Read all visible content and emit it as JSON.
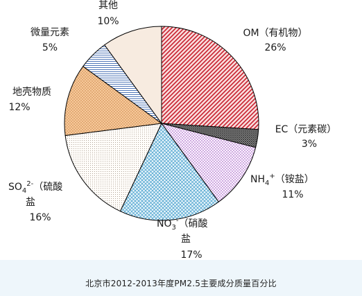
{
  "chart_data": {
    "type": "pie",
    "title": "北京市2012-2013年度PM2.5主要成分质量百分比",
    "slices": [
      {
        "label": "OM（有机物）",
        "value": 26,
        "value_label": "26%",
        "color": "#c8202e",
        "pattern": "diagonal-hatch"
      },
      {
        "label": "EC（元素碳）",
        "value": 3,
        "value_label": "3%",
        "color": "#555555",
        "pattern": "dense-crosshatch"
      },
      {
        "label": "NH4+（铵盐）",
        "value": 11,
        "value_label": "11%",
        "color": "#8e3fb0",
        "pattern": "dots"
      },
      {
        "label": "NO3-（硝酸盐）",
        "value": 17,
        "value_label": "17%",
        "color": "#3a9ac9",
        "pattern": "grid"
      },
      {
        "label": "SO42-（硫酸盐）",
        "value": 16,
        "value_label": "16%",
        "color": "#8a7a6a",
        "pattern": "fine-dots"
      },
      {
        "label": "地壳物质",
        "value": 12,
        "value_label": "12%",
        "color": "#e08a3c",
        "pattern": "dots-on-peach"
      },
      {
        "label": "微量元素",
        "value": 5,
        "value_label": "5%",
        "color": "#4f76b8",
        "pattern": "horizontal-lines"
      },
      {
        "label": "其他",
        "value": 10,
        "value_label": "10%",
        "color": "#f7ebe0",
        "pattern": "solid"
      }
    ],
    "legend": "none"
  }
}
